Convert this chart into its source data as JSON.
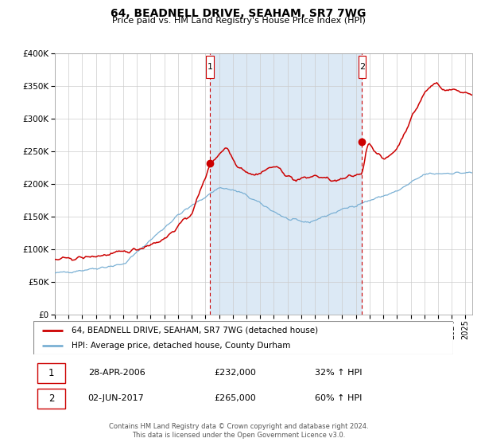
{
  "title": "64, BEADNELL DRIVE, SEAHAM, SR7 7WG",
  "subtitle": "Price paid vs. HM Land Registry's House Price Index (HPI)",
  "legend_line1": "64, BEADNELL DRIVE, SEAHAM, SR7 7WG (detached house)",
  "legend_line2": "HPI: Average price, detached house, County Durham",
  "annotation1_date": "28-APR-2006",
  "annotation1_price": "£232,000",
  "annotation1_hpi": "32% ↑ HPI",
  "annotation2_date": "02-JUN-2017",
  "annotation2_price": "£265,000",
  "annotation2_hpi": "60% ↑ HPI",
  "footer1": "Contains HM Land Registry data © Crown copyright and database right 2024.",
  "footer2": "This data is licensed under the Open Government Licence v3.0.",
  "red_color": "#cc0000",
  "blue_color": "#7ab0d4",
  "shade_color": "#dce9f5",
  "plot_bg": "#ffffff",
  "grid_color": "#cccccc",
  "ylim": [
    0,
    400000
  ],
  "yticks": [
    0,
    50000,
    100000,
    150000,
    200000,
    250000,
    300000,
    350000,
    400000
  ],
  "xlim_start": 1995.0,
  "xlim_end": 2025.5,
  "sale1_x": 2006.33,
  "sale1_y": 232000,
  "sale2_x": 2017.45,
  "sale2_y": 265000,
  "shade_start": 2006.33,
  "shade_end": 2017.45
}
